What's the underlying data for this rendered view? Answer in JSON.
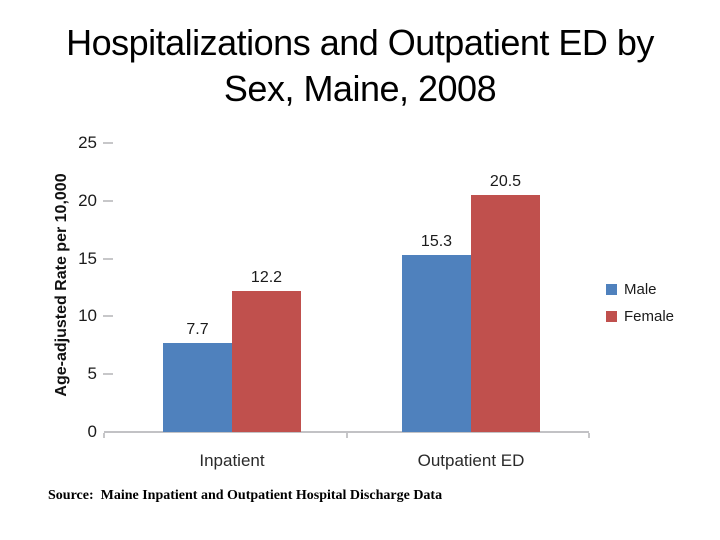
{
  "slide": {
    "title": {
      "line1": "Hospitalizations and Outpatient ED by",
      "line2": "Sex, Maine, 2008"
    },
    "source_note": "Source:  Maine Inpatient and Outpatient Hospital Discharge Data"
  },
  "chart_data": {
    "type": "bar",
    "categories": [
      "Inpatient",
      "Outpatient ED"
    ],
    "series": [
      {
        "name": "Male",
        "color": "#4F81BD",
        "values": [
          7.7,
          15.3
        ]
      },
      {
        "name": "Female",
        "color": "#C0504D",
        "values": [
          12.2,
          20.5
        ]
      }
    ],
    "ylabel": "Age-adjusted Rate per 10,000",
    "ylim": [
      0,
      25
    ],
    "yticks": [
      0,
      5,
      10,
      15,
      20,
      25
    ],
    "grid": false,
    "legend_position": "right",
    "data_labels": true
  }
}
